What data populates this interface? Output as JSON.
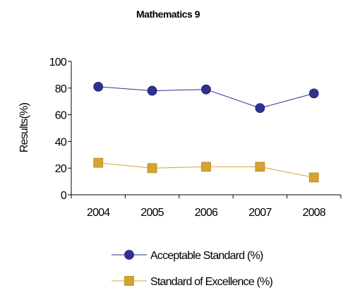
{
  "chart_data": {
    "type": "line",
    "title": "Mathematics 9",
    "xlabel": "",
    "ylabel": "Results(%)",
    "categories": [
      "2004",
      "2005",
      "2006",
      "2007",
      "2008"
    ],
    "ylim": [
      0,
      100
    ],
    "yticks": [
      0,
      20,
      40,
      60,
      80,
      100
    ],
    "grid": false,
    "legend_position": "bottom",
    "series": [
      {
        "name": "Acceptable Standard (%)",
        "values": [
          81,
          78,
          79,
          65,
          76
        ],
        "color": "#2e3192",
        "marker": "circle"
      },
      {
        "name": "Standard of Excellence (%)",
        "values": [
          24,
          20,
          21,
          21,
          13
        ],
        "color": "#d4a430",
        "marker": "square"
      }
    ]
  }
}
